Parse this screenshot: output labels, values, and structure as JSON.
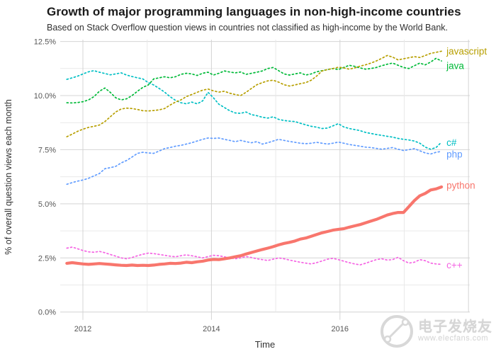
{
  "header": {
    "title": "Growth of major programming languages in non-high-income countries",
    "subtitle": "Based on Stack Overflow question views in countries not classified as high-income by the World Bank."
  },
  "axes": {
    "y": {
      "title": "% of overall question views each month",
      "ticks": [
        {
          "label": "12.5%",
          "value": 12.5
        },
        {
          "label": "10.0%",
          "value": 10.0
        },
        {
          "label": "7.5%",
          "value": 7.5
        },
        {
          "label": "5.0%",
          "value": 5.0
        },
        {
          "label": "2.5%",
          "value": 2.5
        },
        {
          "label": "0.0%",
          "value": 0.0
        }
      ],
      "minor": [
        11.25,
        8.75,
        6.25,
        3.75,
        1.25
      ]
    },
    "x": {
      "title": "Time",
      "ticks": [
        {
          "label": "2012",
          "value": 2012
        },
        {
          "label": "2014",
          "value": 2014
        },
        {
          "label": "2016",
          "value": 2016
        }
      ],
      "major_grid_years": [
        2012,
        2014,
        2016,
        2018
      ],
      "minor_grid_years": [
        2013,
        2015,
        2017
      ]
    }
  },
  "watermark": {
    "brand": "电子发烧友",
    "url": "www.elecfans.com"
  },
  "colors": {
    "background": "#ffffff",
    "grid_major": "#d4d4d4",
    "grid_minor": "#e9e9e9",
    "title": "#1a1a1a",
    "subtitle": "#303030",
    "axis_text": "#555555",
    "axis_title": "#333333",
    "watermark": "#cbcbcb"
  },
  "chart_data": {
    "type": "line",
    "title": "Growth of major programming languages in non-high-income countries",
    "subtitle": "Based on Stack Overflow question views in countries not classified as high-income by the World Bank.",
    "xlabel": "Time",
    "ylabel": "% of overall question views each month",
    "ylim": [
      0,
      12.7
    ],
    "xlim": [
      2011.63,
      2018.02
    ],
    "grid": true,
    "legend_position": "right-of-line-ends",
    "x_start": 2011.75,
    "x_end": 2017.58,
    "x_unit": "decimal-year, monthly points",
    "series": [
      {
        "name": "c#",
        "color": "#00BFC4",
        "style": "dotted",
        "label_dy": 1,
        "values": [
          10.75,
          10.82,
          10.9,
          11.0,
          11.1,
          11.15,
          11.08,
          11.02,
          10.96,
          11.0,
          11.05,
          10.95,
          10.88,
          10.82,
          10.77,
          10.6,
          10.49,
          10.33,
          10.16,
          9.95,
          9.78,
          9.67,
          9.62,
          9.7,
          9.62,
          9.75,
          10.15,
          9.9,
          9.6,
          9.45,
          9.3,
          9.2,
          9.18,
          9.24,
          9.12,
          9.07,
          9.0,
          8.96,
          9.02,
          8.9,
          8.85,
          8.82,
          8.8,
          8.72,
          8.65,
          8.58,
          8.54,
          8.48,
          8.5,
          8.6,
          8.7,
          8.55,
          8.48,
          8.43,
          8.38,
          8.3,
          8.25,
          8.2,
          8.16,
          8.12,
          8.08,
          8.02,
          7.98,
          7.95,
          7.9,
          7.8,
          7.62,
          7.52,
          7.6,
          7.85
        ]
      },
      {
        "name": "php",
        "color": "#619CFF",
        "style": "dotted",
        "label_dy": 4,
        "values": [
          5.9,
          5.98,
          6.05,
          6.1,
          6.18,
          6.29,
          6.4,
          6.62,
          6.67,
          6.73,
          6.89,
          7.0,
          7.16,
          7.33,
          7.38,
          7.35,
          7.33,
          7.44,
          7.55,
          7.6,
          7.66,
          7.7,
          7.76,
          7.82,
          7.9,
          7.98,
          8.04,
          8.02,
          8.04,
          7.98,
          7.93,
          7.87,
          7.93,
          7.87,
          7.82,
          7.87,
          7.76,
          7.82,
          7.9,
          7.98,
          7.93,
          7.88,
          7.84,
          7.8,
          7.78,
          7.8,
          7.84,
          7.8,
          7.76,
          7.8,
          7.85,
          7.8,
          7.74,
          7.7,
          7.66,
          7.62,
          7.6,
          7.56,
          7.52,
          7.56,
          7.6,
          7.52,
          7.46,
          7.5,
          7.55,
          7.45,
          7.35,
          7.3,
          7.38,
          7.42
        ]
      },
      {
        "name": "java",
        "color": "#00BA38",
        "style": "dotted",
        "label_dy": 7,
        "values": [
          9.67,
          9.66,
          9.68,
          9.72,
          9.8,
          9.95,
          10.2,
          10.35,
          10.15,
          9.9,
          9.8,
          9.85,
          10.0,
          10.2,
          10.38,
          10.49,
          10.77,
          10.82,
          10.87,
          10.82,
          10.87,
          10.98,
          11.03,
          11.0,
          10.93,
          11.03,
          11.08,
          10.95,
          11.03,
          11.14,
          11.09,
          11.05,
          11.09,
          10.98,
          11.03,
          11.08,
          11.14,
          11.25,
          11.3,
          11.15,
          11.0,
          10.95,
          11.0,
          11.05,
          10.95,
          11.0,
          11.1,
          11.15,
          11.2,
          11.25,
          11.2,
          11.3,
          11.4,
          11.35,
          11.28,
          11.22,
          11.25,
          11.3,
          11.38,
          11.45,
          11.5,
          11.4,
          11.3,
          11.25,
          11.38,
          11.5,
          11.42,
          11.55,
          11.72,
          11.6
        ]
      },
      {
        "name": "javascript",
        "color": "#B79F00",
        "style": "dotted",
        "label_dy": 0,
        "values": [
          8.1,
          8.22,
          8.35,
          8.45,
          8.53,
          8.58,
          8.64,
          8.8,
          9.02,
          9.24,
          9.38,
          9.42,
          9.4,
          9.36,
          9.3,
          9.29,
          9.31,
          9.34,
          9.4,
          9.56,
          9.7,
          9.8,
          9.95,
          10.05,
          10.15,
          10.25,
          10.3,
          10.22,
          10.16,
          10.2,
          10.11,
          10.05,
          10.0,
          10.15,
          10.33,
          10.5,
          10.6,
          10.68,
          10.71,
          10.62,
          10.5,
          10.44,
          10.49,
          10.55,
          10.6,
          10.71,
          10.9,
          11.14,
          11.2,
          11.25,
          11.31,
          11.28,
          11.22,
          11.28,
          11.36,
          11.42,
          11.5,
          11.6,
          11.72,
          11.85,
          11.78,
          11.65,
          11.7,
          11.75,
          11.8,
          11.76,
          11.85,
          11.95,
          12.0,
          12.05
        ]
      },
      {
        "name": "c++",
        "color": "#F564E3",
        "style": "dotted",
        "label_dy": 1,
        "values": [
          2.95,
          3.0,
          2.92,
          2.84,
          2.78,
          2.76,
          2.8,
          2.74,
          2.66,
          2.58,
          2.5,
          2.46,
          2.52,
          2.6,
          2.67,
          2.72,
          2.7,
          2.66,
          2.62,
          2.58,
          2.55,
          2.6,
          2.64,
          2.6,
          2.55,
          2.5,
          2.56,
          2.62,
          2.6,
          2.55,
          2.5,
          2.46,
          2.5,
          2.56,
          2.52,
          2.46,
          2.42,
          2.38,
          2.44,
          2.5,
          2.46,
          2.4,
          2.35,
          2.3,
          2.26,
          2.22,
          2.28,
          2.36,
          2.44,
          2.48,
          2.42,
          2.35,
          2.28,
          2.22,
          2.18,
          2.25,
          2.34,
          2.42,
          2.46,
          2.4,
          2.42,
          2.53,
          2.37,
          2.26,
          2.3,
          2.42,
          2.37,
          2.26,
          2.22,
          2.2
        ]
      },
      {
        "name": "python",
        "color": "#F8766D",
        "style": "solid",
        "label_dy": -2,
        "values": [
          2.25,
          2.28,
          2.25,
          2.22,
          2.2,
          2.22,
          2.24,
          2.22,
          2.2,
          2.18,
          2.16,
          2.15,
          2.17,
          2.15,
          2.16,
          2.15,
          2.17,
          2.2,
          2.22,
          2.25,
          2.24,
          2.26,
          2.3,
          2.28,
          2.32,
          2.35,
          2.4,
          2.43,
          2.42,
          2.46,
          2.5,
          2.55,
          2.6,
          2.68,
          2.75,
          2.82,
          2.89,
          2.95,
          3.02,
          3.1,
          3.17,
          3.22,
          3.28,
          3.37,
          3.42,
          3.5,
          3.58,
          3.66,
          3.72,
          3.78,
          3.82,
          3.85,
          3.92,
          3.98,
          4.04,
          4.12,
          4.2,
          4.28,
          4.38,
          4.48,
          4.55,
          4.6,
          4.6,
          4.87,
          5.15,
          5.37,
          5.48,
          5.64,
          5.69,
          5.78
        ]
      }
    ]
  }
}
